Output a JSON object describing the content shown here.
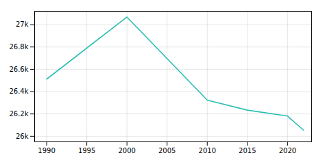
{
  "chart_data": {
    "type": "line",
    "x": [
      1990,
      2000,
      2010,
      2015,
      2020,
      2022
    ],
    "values": [
      26512,
      27068,
      26324,
      26234,
      26181,
      26054
    ],
    "color": "#2abfb3",
    "xlim": [
      1988.5,
      2023
    ],
    "ylim": [
      25950,
      27120
    ],
    "xticks": [
      1990,
      1995,
      2000,
      2005,
      2010,
      2015,
      2020
    ],
    "yticks": [
      {
        "value": 26000,
        "label": "26k"
      },
      {
        "value": 26200,
        "label": "26.2k"
      },
      {
        "value": 26400,
        "label": "26.4k"
      },
      {
        "value": 26600,
        "label": "26.6k"
      },
      {
        "value": 26800,
        "label": "26.8k"
      },
      {
        "value": 27000,
        "label": "27k"
      }
    ],
    "grid": true
  }
}
